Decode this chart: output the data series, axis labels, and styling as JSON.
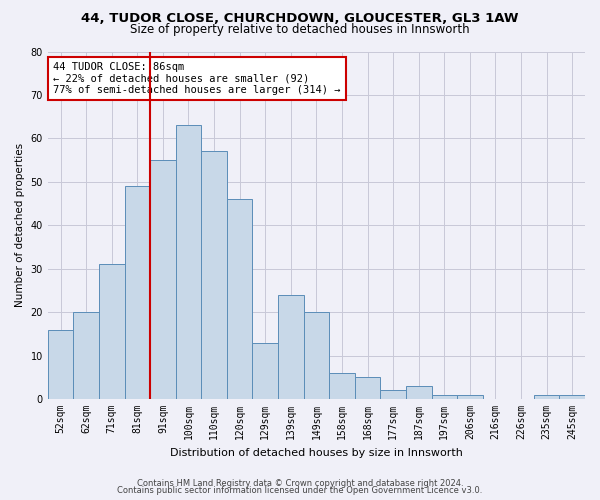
{
  "title1": "44, TUDOR CLOSE, CHURCHDOWN, GLOUCESTER, GL3 1AW",
  "title2": "Size of property relative to detached houses in Innsworth",
  "xlabel": "Distribution of detached houses by size in Innsworth",
  "ylabel": "Number of detached properties",
  "categories": [
    "52sqm",
    "62sqm",
    "71sqm",
    "81sqm",
    "91sqm",
    "100sqm",
    "110sqm",
    "120sqm",
    "129sqm",
    "139sqm",
    "149sqm",
    "158sqm",
    "168sqm",
    "177sqm",
    "187sqm",
    "197sqm",
    "206sqm",
    "216sqm",
    "226sqm",
    "235sqm",
    "245sqm"
  ],
  "values": [
    16,
    20,
    31,
    49,
    55,
    63,
    57,
    46,
    13,
    24,
    20,
    6,
    5,
    2,
    3,
    1,
    1,
    0,
    0,
    1,
    1
  ],
  "bar_color": "#c8d8e8",
  "bar_edge_color": "#5b8db8",
  "vline_x_index": 3.5,
  "vline_color": "#cc0000",
  "annotation_line1": "44 TUDOR CLOSE: 86sqm",
  "annotation_line2": "← 22% of detached houses are smaller (92)",
  "annotation_line3": "77% of semi-detached houses are larger (314) →",
  "annotation_box_color": "#cc0000",
  "ylim": [
    0,
    80
  ],
  "yticks": [
    0,
    10,
    20,
    30,
    40,
    50,
    60,
    70,
    80
  ],
  "footnote1": "Contains HM Land Registry data © Crown copyright and database right 2024.",
  "footnote2": "Contains public sector information licensed under the Open Government Licence v3.0.",
  "bg_color": "#f0f0f8",
  "grid_color": "#c8c8d8",
  "title1_fontsize": 9.5,
  "title2_fontsize": 8.5,
  "xlabel_fontsize": 8.0,
  "ylabel_fontsize": 7.5,
  "tick_fontsize": 7.0,
  "annot_fontsize": 7.5,
  "footnote_fontsize": 6.0
}
